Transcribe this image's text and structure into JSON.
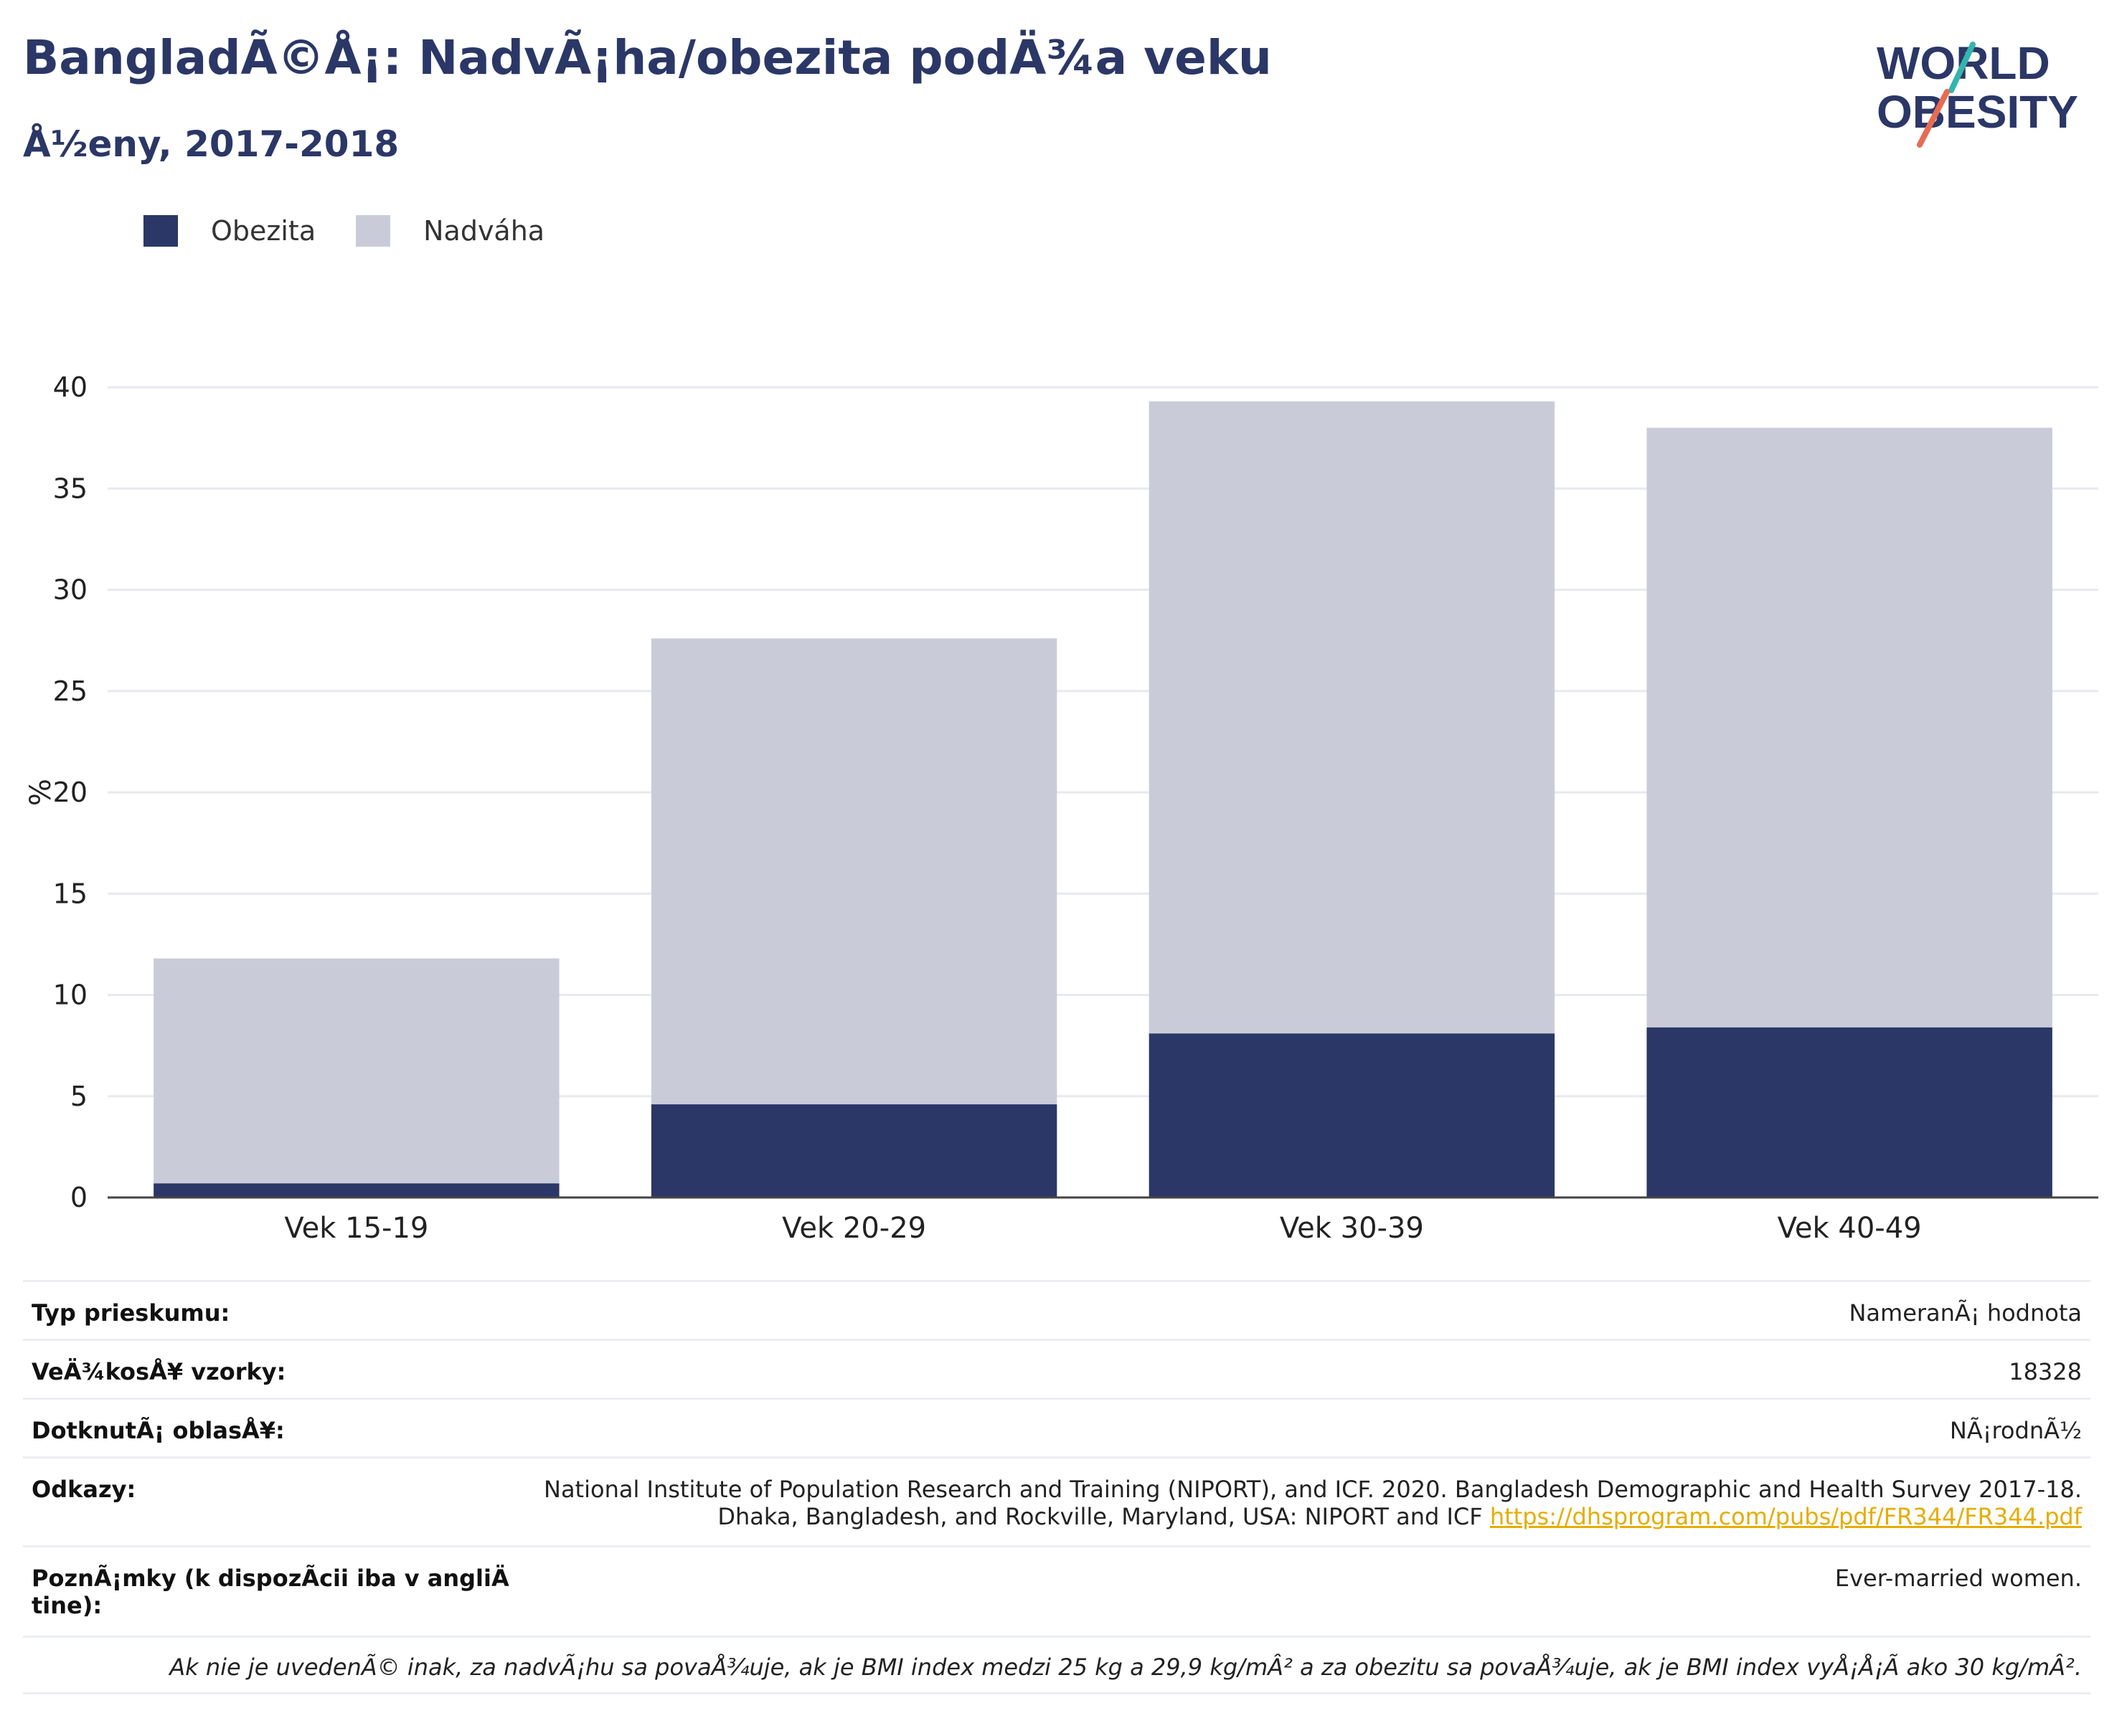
{
  "header": {
    "title": "BangladÃ©Å¡: NadvÃ¡ha/obezita podÄ¾a veku",
    "subtitle": "Å½eny, 2017-2018"
  },
  "logo": {
    "line1": "WORLD",
    "line2": "OBESITY",
    "slash_colors": [
      "#33b5ad",
      "#e86b52"
    ]
  },
  "legend": [
    {
      "label": "Obezita",
      "color": "#2b3766"
    },
    {
      "label": "Nadváha",
      "color": "#c9ccd8"
    }
  ],
  "chart_data": {
    "type": "bar",
    "stacked": true,
    "categories": [
      "Vek 15-19",
      "Vek 20-29",
      "Vek 30-39",
      "Vek 40-49"
    ],
    "series": [
      {
        "name": "Obezita",
        "color": "#2b3766",
        "values": [
          0.7,
          4.6,
          8.1,
          8.4
        ]
      },
      {
        "name": "Nadváha",
        "color": "#c9ccd8",
        "values": [
          11.1,
          23.0,
          31.2,
          29.6
        ]
      }
    ],
    "totals": [
      11.8,
      27.6,
      39.3,
      38.0
    ],
    "ylabel": "%",
    "ylim": [
      0,
      40
    ],
    "yticks": [
      "0",
      "5",
      "10",
      "15",
      "20",
      "25",
      "30",
      "35",
      "40"
    ],
    "grid": true
  },
  "info": {
    "survey_type": {
      "label": "Typ prieskumu:",
      "value": "NameranÃ¡ hodnota"
    },
    "sample_size": {
      "label": "VeÄ¾kosÅ¥ vzorky:",
      "value": "18328"
    },
    "area": {
      "label": "DotknutÃ¡ oblasÅ¥:",
      "value": "NÃ¡rodnÃ½"
    },
    "references": {
      "label": "Odkazy:",
      "line1": "National Institute of Population Research and Training (NIPORT), and ICF. 2020. Bangladesh Demographic and Health Survey 2017-18.",
      "line2": "Dhaka, Bangladesh, and Rockville, Maryland, USA: NIPORT and ICF",
      "link": "https://dhsprogram.com/pubs/pdf/FR344/FR344.pdf"
    },
    "notes": {
      "label_line1": "PoznÃ¡mky (k dispozÃcii iba v angliÄ",
      "label_line2": "tine):",
      "value": "Ever-married women."
    },
    "footnote": "Ak nie je uvedenÃ© inak, za nadvÃ¡hu sa povaÅ¾uje, ak je BMI index medzi 25 kg a 29,9 kg/mÂ² a za obezitu sa povaÅ¾uje, ak je BMI index vyÅ¡Å¡Ã ako 30 kg/mÂ²."
  }
}
